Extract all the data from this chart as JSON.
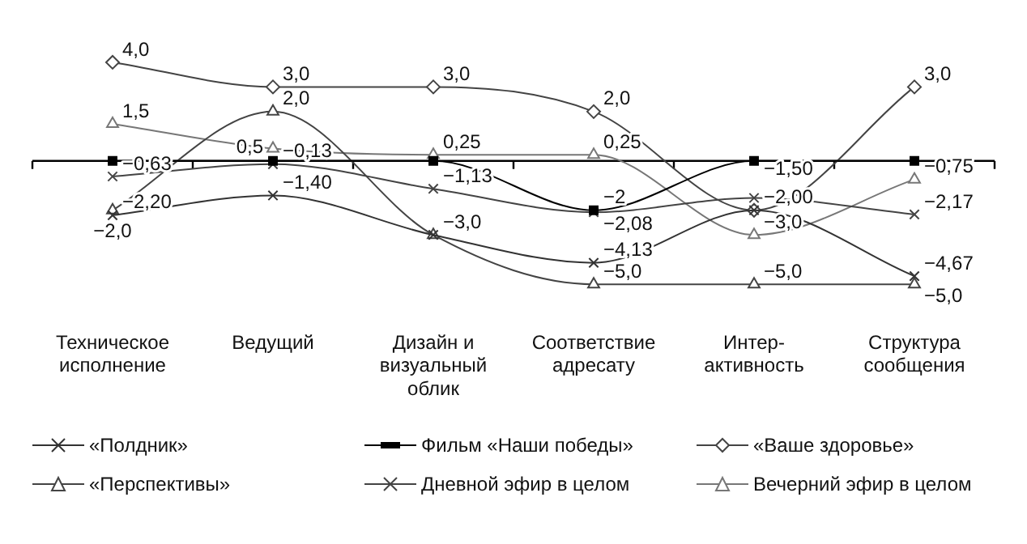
{
  "chart_data": {
    "type": "line",
    "categories": [
      "Техническое\nисполнение",
      "Ведущий",
      "Дизайн и\nвизуальный\nоблик",
      "Соответствие\nадресату",
      "Интер-\nактивность",
      "Структура\nсообщения"
    ],
    "tick_labels": "x",
    "grid": false,
    "legend": "bottom",
    "line_style": "solid",
    "series": [
      {
        "name": "«Полдник»",
        "color": "#333333",
        "marker": "cross",
        "values": [
          -2.2,
          -1.4,
          -3.0,
          -4.13,
          -2.0,
          -4.67
        ],
        "value_labels": [
          "−2,20",
          "−1,40",
          null,
          "−4,13",
          "−2,00",
          "−4,67"
        ]
      },
      {
        "name": "Фильм «Наши победы»",
        "color": "#000000",
        "marker": "square",
        "values": [
          0,
          0,
          0,
          -2,
          0,
          0
        ],
        "value_labels": [
          null,
          null,
          null,
          "−2",
          null,
          null
        ]
      },
      {
        "name": "«Ваше здоровье»",
        "color": "#444444",
        "marker": "diamond",
        "values": [
          4.0,
          3.0,
          3.0,
          2.0,
          -2.0,
          3.0
        ],
        "value_labels": [
          "4,0",
          "3,0",
          "3,0",
          "2,0",
          null,
          "3,0"
        ]
      },
      {
        "name": "«Перспективы»",
        "color": "#444444",
        "marker": "triangle",
        "values": [
          -2.0,
          2.0,
          -3.0,
          -5.0,
          -5.0,
          -5.0
        ],
        "value_labels": [
          "−2,0",
          "2,0",
          "−3,0",
          "−5,0",
          "−5,0",
          "−5,0"
        ]
      },
      {
        "name": "Дневной эфир в целом",
        "color": "#444444",
        "marker": "cross",
        "values": [
          -0.63,
          -0.13,
          -1.13,
          -2.08,
          -1.5,
          -2.17
        ],
        "value_labels": [
          "−0,63",
          "−0,13",
          "−1,13",
          "−2,08",
          "−1,50",
          "−2,17"
        ]
      },
      {
        "name": "Вечерний эфир в целом",
        "color": "#777777",
        "marker": "triangle",
        "values": [
          1.5,
          0.5,
          0.25,
          0.25,
          -3.0,
          -0.75
        ],
        "value_labels": [
          "1,5",
          "0,5",
          "0,25",
          "0,25",
          "−3,0",
          "−0,75"
        ]
      }
    ]
  }
}
